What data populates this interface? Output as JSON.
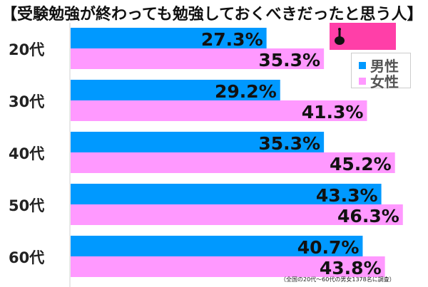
{
  "title": "【受験勉強が終わっても勉強しておくべきだったと思う人】",
  "logo": {
    "tagline": "気になるアレを大調査ニュース!",
    "brand": "しらべぇ"
  },
  "note": "（全国の20代～60代の男女1378名に調査）",
  "colors": {
    "male": "#0099ff",
    "female": "#ff99ff",
    "axis": "#d0d0d0"
  },
  "chart_data": {
    "type": "bar",
    "orientation": "horizontal",
    "title": "【受験勉強が終わっても勉強しておくべきだったと思う人】",
    "categories": [
      "20代",
      "30代",
      "40代",
      "50代",
      "60代"
    ],
    "series": [
      {
        "name": "男性",
        "values": [
          27.3,
          29.2,
          35.3,
          43.3,
          40.7
        ],
        "labels": [
          "27.3%",
          "29.2%",
          "35.3%",
          "43.3%",
          "40.7%"
        ]
      },
      {
        "name": "女性",
        "values": [
          35.3,
          41.3,
          45.2,
          46.3,
          43.8
        ],
        "labels": [
          "35.3%",
          "41.3%",
          "45.2%",
          "46.3%",
          "43.8%"
        ]
      }
    ],
    "xlim": [
      0,
      50
    ],
    "grid": false,
    "legend": "top-right",
    "unit": "%"
  }
}
